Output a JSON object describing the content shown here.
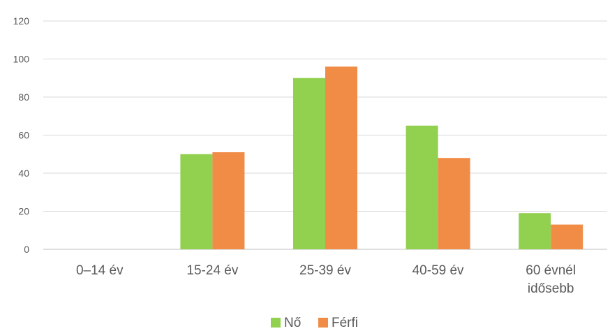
{
  "chart_data": {
    "type": "bar",
    "categories": [
      [
        "0–14 év"
      ],
      [
        "15-24 év"
      ],
      [
        "25-39 év"
      ],
      [
        "40-59 év"
      ],
      [
        "60 évnél",
        "idősebb"
      ]
    ],
    "series": [
      {
        "name": "Nő",
        "color": "#92D050",
        "values": [
          0,
          50,
          90,
          65,
          19
        ]
      },
      {
        "name": "Férfi",
        "color": "#F08C46",
        "values": [
          0,
          51,
          96,
          48,
          13
        ]
      }
    ],
    "ylim": [
      0,
      120
    ],
    "yticks": [
      0,
      20,
      40,
      60,
      80,
      100,
      120
    ],
    "grid": true,
    "legend_position": "bottom",
    "title": "",
    "xlabel": "",
    "ylabel": ""
  }
}
